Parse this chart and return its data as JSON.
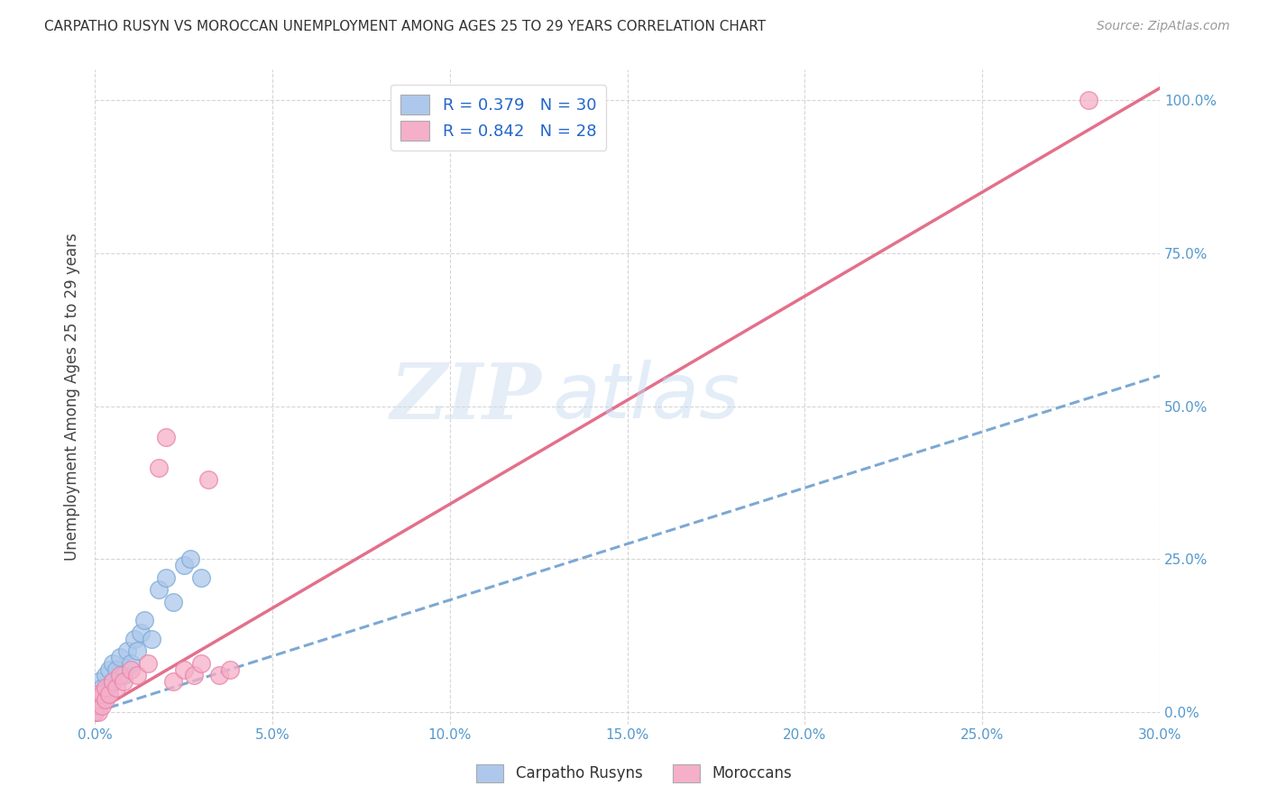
{
  "title": "CARPATHO RUSYN VS MOROCCAN UNEMPLOYMENT AMONG AGES 25 TO 29 YEARS CORRELATION CHART",
  "source": "Source: ZipAtlas.com",
  "ylabel": "Unemployment Among Ages 25 to 29 years",
  "legend_label_blue": "Carpatho Rusyns",
  "legend_label_pink": "Moroccans",
  "R_blue": 0.379,
  "N_blue": 30,
  "R_pink": 0.842,
  "N_pink": 28,
  "blue_color": "#adc8ec",
  "blue_edge": "#7aaad4",
  "pink_color": "#f5afc8",
  "pink_edge": "#e882a8",
  "trendline_blue_color": "#6699cc",
  "trendline_pink_color": "#e06080",
  "watermark_zip": "ZIP",
  "watermark_atlas": "atlas",
  "xlim": [
    0.0,
    0.3
  ],
  "ylim": [
    -0.02,
    1.05
  ],
  "xticks": [
    0.0,
    0.05,
    0.1,
    0.15,
    0.2,
    0.25,
    0.3
  ],
  "yticks": [
    0.0,
    0.25,
    0.5,
    0.75,
    1.0
  ],
  "blue_x": [
    0.0,
    0.0,
    0.0,
    0.001,
    0.001,
    0.001,
    0.002,
    0.002,
    0.003,
    0.003,
    0.004,
    0.004,
    0.005,
    0.005,
    0.006,
    0.007,
    0.008,
    0.009,
    0.01,
    0.011,
    0.012,
    0.013,
    0.014,
    0.016,
    0.018,
    0.02,
    0.022,
    0.025,
    0.027,
    0.03
  ],
  "blue_y": [
    0.0,
    0.01,
    0.02,
    0.01,
    0.03,
    0.05,
    0.02,
    0.04,
    0.03,
    0.06,
    0.04,
    0.07,
    0.05,
    0.08,
    0.07,
    0.09,
    0.06,
    0.1,
    0.08,
    0.12,
    0.1,
    0.13,
    0.15,
    0.12,
    0.2,
    0.22,
    0.18,
    0.24,
    0.25,
    0.22
  ],
  "pink_x": [
    0.0,
    0.0,
    0.0,
    0.001,
    0.001,
    0.001,
    0.002,
    0.002,
    0.003,
    0.003,
    0.004,
    0.005,
    0.006,
    0.007,
    0.008,
    0.01,
    0.012,
    0.015,
    0.018,
    0.02,
    0.022,
    0.025,
    0.028,
    0.03,
    0.032,
    0.035,
    0.038,
    0.28
  ],
  "pink_y": [
    0.0,
    0.01,
    0.02,
    0.0,
    0.02,
    0.03,
    0.01,
    0.03,
    0.02,
    0.04,
    0.03,
    0.05,
    0.04,
    0.06,
    0.05,
    0.07,
    0.06,
    0.08,
    0.4,
    0.45,
    0.05,
    0.07,
    0.06,
    0.08,
    0.38,
    0.06,
    0.07,
    1.0
  ],
  "blue_trend_x": [
    0.0,
    0.3
  ],
  "blue_trend_y": [
    0.0,
    0.55
  ],
  "pink_trend_x": [
    0.0,
    0.3
  ],
  "pink_trend_y": [
    0.0,
    1.02
  ]
}
